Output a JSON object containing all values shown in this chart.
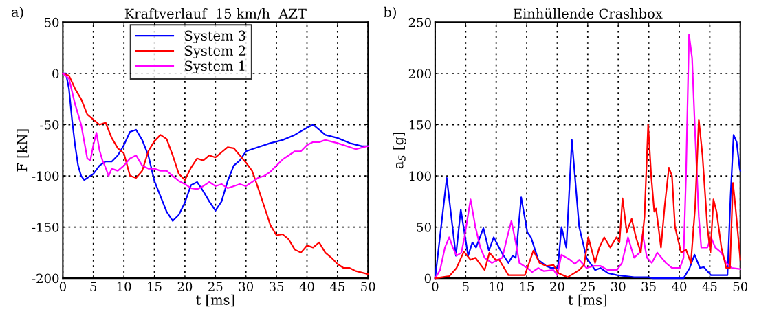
{
  "chart_data": [
    {
      "type": "line",
      "title": "Kraftverlauf  15 km/h  AZT",
      "xlabel": "t [ms]",
      "ylabel": "F [kN]",
      "annotations": [
        "a)"
      ],
      "xlim": [
        0,
        50
      ],
      "xticks": [
        0,
        5,
        10,
        15,
        20,
        25,
        30,
        35,
        40,
        45,
        50
      ],
      "ylim": [
        -200,
        50
      ],
      "yticks": [
        -200,
        -150,
        -100,
        -50,
        0,
        50
      ],
      "grid": true,
      "legend": "top",
      "line_style": "solid",
      "marker": "none",
      "series": [
        {
          "name": "System 3",
          "color": "#0000ff",
          "x": [
            0,
            0.5,
            1,
            1.5,
            2,
            2.5,
            3,
            3.5,
            4,
            5,
            6,
            7,
            8,
            9,
            10,
            11,
            12,
            13,
            14,
            15,
            16,
            17,
            18,
            19,
            20,
            21,
            22,
            23,
            24,
            25,
            26,
            27,
            28,
            29,
            30,
            32,
            34,
            36,
            38,
            40,
            41,
            42,
            43,
            45,
            47,
            49,
            50
          ],
          "values": [
            0,
            0,
            -15,
            -45,
            -70,
            -90,
            -100,
            -104,
            -102,
            -98,
            -90,
            -86,
            -86,
            -80,
            -70,
            -57,
            -55,
            -65,
            -80,
            -105,
            -120,
            -135,
            -144,
            -138,
            -126,
            -109,
            -106,
            -115,
            -125,
            -134,
            -125,
            -105,
            -90,
            -85,
            -76,
            -72,
            -68,
            -65,
            -60,
            -53,
            -50,
            -55,
            -60,
            -63,
            -68,
            -71,
            -71
          ]
        },
        {
          "name": "System 2",
          "color": "#ff0000",
          "x": [
            0,
            1,
            2,
            3,
            4,
            5,
            6,
            7,
            8,
            9,
            10,
            11,
            12,
            13,
            14,
            15,
            16,
            17,
            18,
            19,
            20,
            21,
            22,
            23,
            24,
            25,
            26,
            27,
            28,
            29,
            30,
            31,
            32,
            33,
            34,
            35,
            36,
            37,
            38,
            39,
            40,
            41,
            42,
            43,
            44,
            45,
            46,
            47,
            48,
            50
          ],
          "values": [
            0,
            -2,
            -15,
            -25,
            -40,
            -45,
            -50,
            -48,
            -63,
            -73,
            -78,
            -100,
            -102,
            -95,
            -76,
            -66,
            -60,
            -64,
            -80,
            -98,
            -104,
            -92,
            -83,
            -85,
            -80,
            -82,
            -77,
            -72,
            -73,
            -80,
            -87,
            -95,
            -112,
            -130,
            -148,
            -158,
            -157,
            -162,
            -172,
            -175,
            -168,
            -170,
            -165,
            -175,
            -180,
            -186,
            -190,
            -190,
            -193,
            -196
          ]
        },
        {
          "name": "System 1",
          "color": "#ff00ff",
          "x": [
            0,
            1,
            2,
            3,
            4,
            4.5,
            5,
            5.5,
            6,
            6.5,
            7,
            7.5,
            8,
            9,
            10,
            11,
            12,
            13,
            14,
            15,
            16,
            17,
            18,
            19,
            20,
            21,
            22,
            23,
            24,
            25,
            26,
            27,
            28,
            29,
            30,
            31,
            32,
            33,
            34,
            35,
            36,
            37,
            38,
            39,
            40,
            41,
            42,
            43,
            45,
            47,
            48,
            50
          ],
          "values": [
            0,
            -5,
            -30,
            -50,
            -83,
            -85,
            -70,
            -58,
            -75,
            -85,
            -92,
            -100,
            -93,
            -95,
            -90,
            -83,
            -80,
            -90,
            -93,
            -93,
            -95,
            -95,
            -100,
            -105,
            -108,
            -112,
            -113,
            -110,
            -106,
            -110,
            -108,
            -112,
            -110,
            -108,
            -110,
            -106,
            -102,
            -100,
            -96,
            -90,
            -84,
            -80,
            -76,
            -76,
            -70,
            -67,
            -67,
            -65,
            -68,
            -72,
            -74,
            -71
          ]
        }
      ]
    },
    {
      "type": "line",
      "title": "Einhüllende Crashbox",
      "xlabel": "t [ms]",
      "ylabel": "a$_{S}$ [g]",
      "annotations": [
        "b)"
      ],
      "xlim": [
        0,
        50
      ],
      "xticks": [
        0,
        5,
        10,
        15,
        20,
        25,
        30,
        35,
        40,
        45,
        50
      ],
      "ylim": [
        0,
        250
      ],
      "yticks": [
        0,
        50,
        100,
        150,
        200,
        250
      ],
      "grid": true,
      "line_style": "solid",
      "marker": "none",
      "series": [
        {
          "color": "#0000ff",
          "x": [
            0,
            1.9,
            3.4,
            4.2,
            5.4,
            6.1,
            6.7,
            7.9,
            8.8,
            9.6,
            10.9,
            12.0,
            12.7,
            13.2,
            14.1,
            15.1,
            15.7,
            16.9,
            18.2,
            19.0,
            20.1,
            20.7,
            21.5,
            22.4,
            23.6,
            24.8,
            26.2,
            27.1,
            28.3,
            29.8,
            32.6,
            34.9,
            35.7,
            40.7,
            41.7,
            42.5,
            43.4,
            44.0,
            45.2,
            47.9,
            48.4,
            48.9,
            49.4,
            49.9,
            50
          ],
          "values": [
            0,
            98,
            22,
            67,
            22,
            35,
            30,
            49,
            27,
            40,
            25,
            15,
            22,
            20,
            79,
            45,
            40,
            18,
            12,
            10,
            10,
            50,
            30,
            135,
            50,
            20,
            8,
            10,
            5,
            3,
            1,
            1,
            0,
            0,
            10,
            23,
            10,
            11,
            3,
            3,
            80,
            140,
            133,
            107,
            105
          ]
        },
        {
          "color": "#ff00ff",
          "x": [
            0,
            0.8,
            1.6,
            2.3,
            2.9,
            3.5,
            4.3,
            4.8,
            5.8,
            6.6,
            7.4,
            8.1,
            9.3,
            11.0,
            11.8,
            12.5,
            13.2,
            13.8,
            15.1,
            15.9,
            16.9,
            17.8,
            19.4,
            20.0,
            20.7,
            22.1,
            22.9,
            23.6,
            24.8,
            26.0,
            27.1,
            28.3,
            29.8,
            30.6,
            31.6,
            32.6,
            33.5,
            34.0,
            34.7,
            35.5,
            36.4,
            37.8,
            38.8,
            40.1,
            40.7,
            41.1,
            41.6,
            42.1,
            42.6,
            43.2,
            43.6,
            44.6,
            45.2,
            45.9,
            46.9,
            47.7,
            48.6,
            50
          ],
          "values": [
            0,
            8,
            30,
            40,
            30,
            22,
            25,
            40,
            77,
            50,
            30,
            20,
            15,
            20,
            40,
            56,
            35,
            15,
            10,
            6,
            10,
            7,
            8,
            3,
            23,
            18,
            14,
            18,
            10,
            12,
            12,
            8,
            8,
            15,
            40,
            20,
            25,
            43,
            20,
            15,
            25,
            15,
            10,
            10,
            20,
            100,
            238,
            215,
            140,
            60,
            30,
            30,
            40,
            30,
            25,
            15,
            10,
            9
          ]
        },
        {
          "color": "#ff0000",
          "x": [
            0,
            2.3,
            3.5,
            4.7,
            5.8,
            6.6,
            8.1,
            8.9,
            9.9,
            10.5,
            12.0,
            14.7,
            16.1,
            17.1,
            18.2,
            19.4,
            20.2,
            21.7,
            23.6,
            24.4,
            25.1,
            26.2,
            26.9,
            27.7,
            28.7,
            29.7,
            30.2,
            30.7,
            31.4,
            31.8,
            32.2,
            32.9,
            33.7,
            34.3,
            34.9,
            35.4,
            35.9,
            36.2,
            37.0,
            37.6,
            38.3,
            38.8,
            39.3,
            40.3,
            41.1,
            41.9,
            42.6,
            43.2,
            43.8,
            44.6,
            45.1,
            45.6,
            46.1,
            46.9,
            47.7,
            48.3,
            48.8,
            49.2,
            50
          ],
          "values": [
            0,
            2,
            10,
            26,
            18,
            20,
            8,
            25,
            18,
            18,
            3,
            3,
            27,
            15,
            12,
            13,
            5,
            1,
            8,
            13,
            40,
            15,
            30,
            40,
            30,
            40,
            35,
            78,
            45,
            52,
            58,
            40,
            25,
            60,
            150,
            100,
            65,
            68,
            30,
            70,
            108,
            100,
            50,
            25,
            28,
            15,
            70,
            155,
            120,
            50,
            25,
            77,
            65,
            30,
            10,
            10,
            93,
            70,
            18
          ]
        }
      ]
    }
  ]
}
